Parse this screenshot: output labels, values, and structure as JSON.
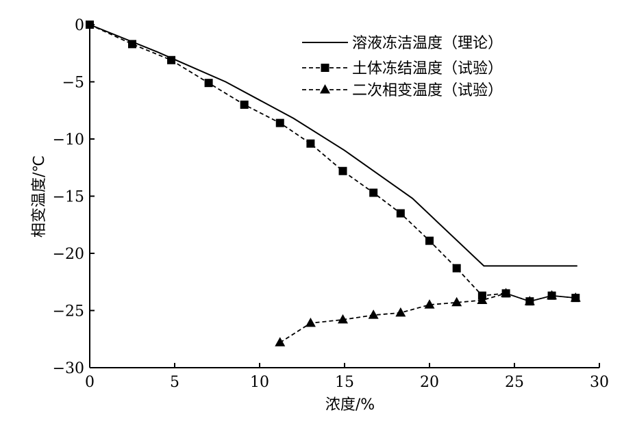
{
  "chart_data": {
    "type": "line",
    "xlabel": "浓度/%",
    "ylabel": "相变温度/℃",
    "xlim": [
      0,
      30
    ],
    "ylim": [
      -30,
      0
    ],
    "xticks": [
      0,
      5,
      10,
      15,
      20,
      25,
      30
    ],
    "yticks": [
      0,
      -5,
      -10,
      -15,
      -20,
      -25,
      -30
    ],
    "xtick_labels": [
      "0",
      "5",
      "10",
      "15",
      "20",
      "25",
      "30"
    ],
    "ytick_labels": [
      "0",
      "−5",
      "−10",
      "−15",
      "−20",
      "−25",
      "−30"
    ],
    "grid": false,
    "legend_position": "top-right",
    "series": [
      {
        "name": "溶液冻洁温度（理论）",
        "style": "solid",
        "marker": "none",
        "x": [
          0,
          4,
          8,
          12,
          15,
          19,
          23.2,
          28.7
        ],
        "y": [
          0,
          -2.4,
          -5.0,
          -8.2,
          -11.0,
          -15.2,
          -21.1,
          -21.1
        ]
      },
      {
        "name": "土体冻结温度（试验）",
        "style": "dashed",
        "marker": "square",
        "x": [
          0,
          2.5,
          4.8,
          7.0,
          9.1,
          11.2,
          13.0,
          14.9,
          16.7,
          18.3,
          20.0,
          21.6,
          23.1,
          24.5,
          25.9,
          27.2,
          28.6
        ],
        "y": [
          0,
          -1.7,
          -3.1,
          -5.1,
          -7.0,
          -8.6,
          -10.4,
          -12.8,
          -14.7,
          -16.5,
          -18.9,
          -21.3,
          -23.7,
          -23.5,
          -24.2,
          -23.7,
          -23.9
        ]
      },
      {
        "name": "二次相变温度（试验）",
        "style": "dashed",
        "marker": "triangle",
        "x": [
          11.2,
          13.0,
          14.9,
          16.7,
          18.3,
          20.0,
          21.6,
          23.1,
          24.5,
          25.9,
          27.2,
          28.6
        ],
        "y": [
          -27.8,
          -26.1,
          -25.8,
          -25.4,
          -25.2,
          -24.5,
          -24.3,
          -24.1,
          -23.5,
          -24.2,
          -23.7,
          -23.9
        ]
      }
    ]
  }
}
